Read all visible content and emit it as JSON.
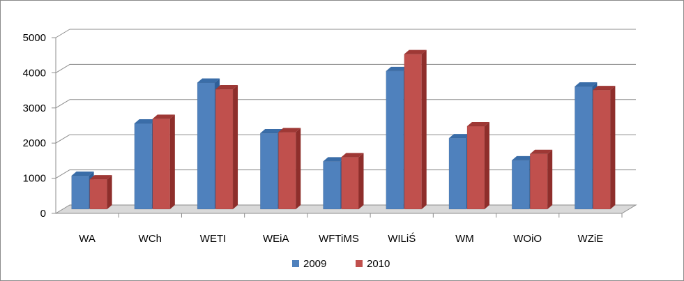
{
  "chart_data": {
    "type": "bar",
    "categories": [
      "WA",
      "WCh",
      "WETI",
      "WEiA",
      "WFTiMS",
      "WILiŚ",
      "WM",
      "WOiO",
      "WZiE"
    ],
    "series": [
      {
        "name": "2009",
        "values": [
          1150,
          2640,
          3800,
          2360,
          1560,
          4130,
          2220,
          1590,
          3690
        ],
        "color": "#4F81BD",
        "side_color": "#2E5F99",
        "top_color": "#3A6DA8"
      },
      {
        "name": "2010",
        "values": [
          1050,
          2770,
          3610,
          2390,
          1680,
          4610,
          2560,
          1770,
          3590
        ],
        "color": "#C0504D",
        "side_color": "#8E2E2B",
        "top_color": "#9E3835"
      }
    ],
    "ylim": [
      0,
      5000
    ],
    "yticks": [
      "0",
      "1000",
      "2000",
      "3000",
      "4000",
      "5000"
    ],
    "grid": true,
    "legend_position": "bottom",
    "style": "3d-clustered-column"
  }
}
